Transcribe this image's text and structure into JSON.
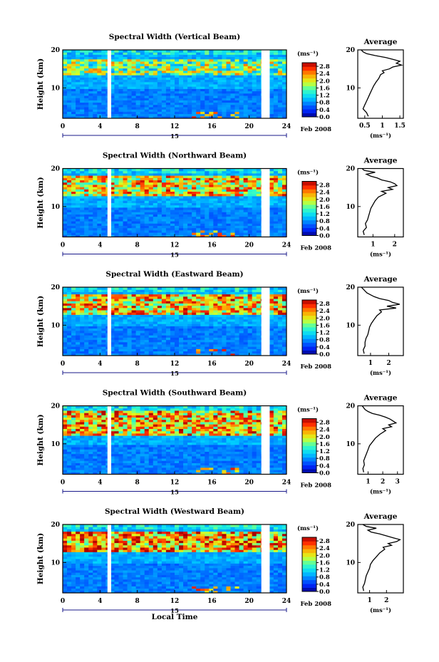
{
  "figure": {
    "xlabel": "Local Time"
  },
  "chart_data": [
    {
      "type": "heatmap",
      "title": "Spectral Width (Vertical Beam)",
      "beam": "vertical",
      "ylabel": "Height (km)",
      "ylim": [
        2,
        20
      ],
      "yticks": [
        10,
        20
      ],
      "xlim": [
        0,
        24
      ],
      "xticks": [
        0,
        4,
        8,
        12,
        16,
        20,
        24
      ],
      "day_label": "15",
      "date_label": "Feb 2008",
      "colorbar": {
        "unit": "(ms⁻¹)",
        "ticks": [
          "0.0",
          "0.4",
          "0.8",
          "1.2",
          "1.6",
          "2.0",
          "2.4",
          "2.8"
        ],
        "range": [
          0,
          3.0
        ]
      },
      "data_gaps_hours": [
        [
          4.8,
          5.2
        ],
        [
          21.3,
          22.2
        ]
      ],
      "layers": [
        {
          "height_km": [
            13.5,
            17.5
          ],
          "level": 0.45
        }
      ],
      "average": {
        "title": "Average",
        "xlabel": "(ms⁻¹)",
        "xlim": [
          0.3,
          1.6
        ],
        "xticks": [
          0.5,
          1.0,
          1.5
        ],
        "xticklabels": [
          "0.5",
          "1",
          "1.5"
        ],
        "ylim": [
          2,
          20
        ],
        "yticks": [
          10,
          20
        ],
        "profile": [
          [
            2.5,
            0.6
          ],
          [
            3.5,
            0.55
          ],
          [
            4.5,
            0.45
          ],
          [
            5.5,
            0.5
          ],
          [
            6.5,
            0.55
          ],
          [
            7.5,
            0.6
          ],
          [
            8.5,
            0.65
          ],
          [
            9.5,
            0.7
          ],
          [
            10.5,
            0.75
          ],
          [
            11.5,
            0.82
          ],
          [
            12.5,
            0.9
          ],
          [
            13.5,
            0.95
          ],
          [
            14,
            1.05
          ],
          [
            14.5,
            1.0
          ],
          [
            15,
            1.2
          ],
          [
            15.5,
            1.3
          ],
          [
            16,
            1.55
          ],
          [
            16.5,
            1.4
          ],
          [
            17,
            1.5
          ],
          [
            17.5,
            1.3
          ],
          [
            18,
            1.1
          ],
          [
            18.5,
            0.8
          ],
          [
            19,
            0.55
          ],
          [
            19.5,
            0.45
          ],
          [
            20,
            0.4
          ]
        ]
      }
    },
    {
      "type": "heatmap",
      "title": "Spectral Width (Northward Beam)",
      "beam": "northward",
      "ylabel": "Height (km)",
      "ylim": [
        2,
        20
      ],
      "yticks": [
        10,
        20
      ],
      "xlim": [
        0,
        24
      ],
      "xticks": [
        0,
        4,
        8,
        12,
        16,
        20,
        24
      ],
      "day_label": "15",
      "date_label": "Feb 2008",
      "colorbar": {
        "unit": "(ms⁻¹)",
        "ticks": [
          "0.0",
          "0.4",
          "0.8",
          "1.2",
          "1.6",
          "2.0",
          "2.4",
          "2.8"
        ],
        "range": [
          0,
          3.0
        ]
      },
      "data_gaps_hours": [
        [
          4.8,
          5.2
        ],
        [
          21.3,
          22.2
        ]
      ],
      "layers": [
        {
          "height_km": [
            13.0,
            18.0
          ],
          "level": 0.7
        }
      ],
      "average": {
        "title": "Average",
        "xlabel": "(ms⁻¹)",
        "xlim": [
          0.3,
          2.4
        ],
        "xticks": [
          1,
          2
        ],
        "xticklabels": [
          "1",
          "2"
        ],
        "ylim": [
          2,
          20
        ],
        "yticks": [
          10,
          20
        ],
        "profile": [
          [
            2.5,
            0.6
          ],
          [
            3.5,
            0.55
          ],
          [
            4.5,
            0.7
          ],
          [
            5.5,
            0.65
          ],
          [
            6.5,
            0.75
          ],
          [
            7.5,
            0.8
          ],
          [
            8.5,
            0.85
          ],
          [
            9.5,
            0.9
          ],
          [
            10.5,
            1.0
          ],
          [
            11.5,
            1.1
          ],
          [
            12.5,
            1.25
          ],
          [
            13.5,
            1.6
          ],
          [
            14,
            1.4
          ],
          [
            14.5,
            1.9
          ],
          [
            15,
            1.7
          ],
          [
            15.5,
            2.1
          ],
          [
            16,
            2.0
          ],
          [
            16.5,
            1.8
          ],
          [
            17,
            1.4
          ],
          [
            17.5,
            1.2
          ],
          [
            18,
            0.9
          ],
          [
            18.5,
            0.7
          ],
          [
            19,
            1.1
          ],
          [
            19.5,
            0.6
          ],
          [
            20,
            0.5
          ]
        ]
      }
    },
    {
      "type": "heatmap",
      "title": "Spectral Width (Eastward Beam)",
      "beam": "eastward",
      "ylabel": "Height (km)",
      "ylim": [
        2,
        20
      ],
      "yticks": [
        10,
        20
      ],
      "xlim": [
        0,
        24
      ],
      "xticks": [
        0,
        4,
        8,
        12,
        16,
        20,
        24
      ],
      "day_label": "15",
      "date_label": "Feb 2008",
      "colorbar": {
        "unit": "(ms⁻¹)",
        "ticks": [
          "0.0",
          "0.4",
          "0.8",
          "1.2",
          "1.6",
          "2.0",
          "2.4",
          "2.8"
        ],
        "range": [
          0,
          3.0
        ]
      },
      "data_gaps_hours": [
        [
          4.8,
          5.2
        ],
        [
          21.3,
          22.2
        ]
      ],
      "layers": [
        {
          "height_km": [
            13.0,
            18.0
          ],
          "level": 0.75
        }
      ],
      "average": {
        "title": "Average",
        "xlabel": "(ms⁻¹)",
        "xlim": [
          0.3,
          2.8
        ],
        "xticks": [
          1,
          2
        ],
        "xticklabels": [
          "1",
          "2"
        ],
        "ylim": [
          2,
          20
        ],
        "yticks": [
          10,
          20
        ],
        "profile": [
          [
            2.5,
            0.65
          ],
          [
            3.5,
            0.6
          ],
          [
            4.5,
            0.7
          ],
          [
            5.5,
            0.7
          ],
          [
            6.5,
            0.75
          ],
          [
            7.5,
            0.85
          ],
          [
            8.5,
            0.9
          ],
          [
            9.5,
            0.95
          ],
          [
            10.5,
            1.05
          ],
          [
            11.5,
            1.2
          ],
          [
            12.5,
            1.35
          ],
          [
            13.5,
            1.6
          ],
          [
            14,
            1.5
          ],
          [
            14.5,
            2.4
          ],
          [
            15,
            1.9
          ],
          [
            15.5,
            2.6
          ],
          [
            16,
            2.2
          ],
          [
            16.5,
            2.0
          ],
          [
            17,
            1.5
          ],
          [
            17.5,
            1.2
          ],
          [
            18,
            1.0
          ],
          [
            18.5,
            0.8
          ],
          [
            19,
            0.7
          ],
          [
            19.5,
            0.6
          ],
          [
            20,
            0.5
          ]
        ]
      }
    },
    {
      "type": "heatmap",
      "title": "Spectral Width (Southward Beam)",
      "beam": "southward",
      "ylabel": "Height (km)",
      "ylim": [
        2,
        20
      ],
      "yticks": [
        10,
        20
      ],
      "xlim": [
        0,
        24
      ],
      "xticks": [
        0,
        4,
        8,
        12,
        16,
        20,
        24
      ],
      "day_label": "15",
      "date_label": "Feb 2008",
      "colorbar": {
        "unit": "(ms⁻¹)",
        "ticks": [
          "0.0",
          "0.4",
          "0.8",
          "1.2",
          "1.6",
          "2.0",
          "2.4",
          "2.8"
        ],
        "range": [
          0,
          3.0
        ]
      },
      "data_gaps_hours": [
        [
          4.8,
          5.2
        ],
        [
          21.3,
          22.2
        ]
      ],
      "layers": [
        {
          "height_km": [
            12.5,
            18.5
          ],
          "level": 0.75
        }
      ],
      "average": {
        "title": "Average",
        "xlabel": "(ms⁻¹)",
        "xlim": [
          0.3,
          3.4
        ],
        "xticks": [
          1,
          2,
          3
        ],
        "xticklabels": [
          "1",
          "2",
          "3"
        ],
        "ylim": [
          2,
          20
        ],
        "yticks": [
          10,
          20
        ],
        "profile": [
          [
            2.5,
            0.7
          ],
          [
            3.5,
            0.65
          ],
          [
            4.5,
            0.75
          ],
          [
            5.5,
            0.7
          ],
          [
            6.5,
            0.8
          ],
          [
            7.5,
            0.9
          ],
          [
            8.5,
            1.0
          ],
          [
            9.5,
            1.1
          ],
          [
            10.5,
            1.3
          ],
          [
            11.5,
            1.5
          ],
          [
            12.5,
            1.8
          ],
          [
            13.5,
            2.2
          ],
          [
            14,
            2.0
          ],
          [
            14.5,
            2.6
          ],
          [
            15,
            2.4
          ],
          [
            15.5,
            2.9
          ],
          [
            16,
            2.7
          ],
          [
            16.5,
            2.5
          ],
          [
            17,
            2.2
          ],
          [
            17.5,
            1.8
          ],
          [
            18,
            1.3
          ],
          [
            18.5,
            1.0
          ],
          [
            19,
            0.8
          ],
          [
            19.5,
            0.7
          ],
          [
            20,
            0.6
          ]
        ]
      }
    },
    {
      "type": "heatmap",
      "title": "Spectral Width (Westward Beam)",
      "beam": "westward",
      "ylabel": "Height (km)",
      "ylim": [
        2,
        20
      ],
      "yticks": [
        10,
        20
      ],
      "xlim": [
        0,
        24
      ],
      "xticks": [
        0,
        4,
        8,
        12,
        16,
        20,
        24
      ],
      "day_label": "15",
      "date_label": "Feb 2008",
      "colorbar": {
        "unit": "(ms⁻¹)",
        "ticks": [
          "0.0",
          "0.4",
          "0.8",
          "1.2",
          "1.6",
          "2.0",
          "2.4",
          "2.8"
        ],
        "range": [
          0,
          3.0
        ]
      },
      "data_gaps_hours": [
        [
          4.8,
          5.2
        ],
        [
          21.3,
          22.2
        ]
      ],
      "layers": [
        {
          "height_km": [
            13.0,
            18.0
          ],
          "level": 0.8
        }
      ],
      "average": {
        "title": "Average",
        "xlabel": "(ms⁻¹)",
        "xlim": [
          0.3,
          3.0
        ],
        "xticks": [
          1,
          2
        ],
        "xticklabels": [
          "1",
          "2"
        ],
        "ylim": [
          2,
          20
        ],
        "yticks": [
          10,
          20
        ],
        "profile": [
          [
            2.5,
            0.65
          ],
          [
            3.5,
            0.6
          ],
          [
            4.5,
            0.7
          ],
          [
            5.5,
            0.75
          ],
          [
            6.5,
            0.8
          ],
          [
            7.5,
            0.9
          ],
          [
            8.5,
            1.0
          ],
          [
            9.5,
            1.05
          ],
          [
            10.5,
            1.2
          ],
          [
            11.5,
            1.4
          ],
          [
            12.5,
            1.6
          ],
          [
            13.5,
            1.9
          ],
          [
            14,
            1.8
          ],
          [
            14.5,
            2.3
          ],
          [
            15,
            2.1
          ],
          [
            15.5,
            2.6
          ],
          [
            16,
            2.8
          ],
          [
            16.5,
            2.4
          ],
          [
            17,
            2.0
          ],
          [
            17.5,
            1.6
          ],
          [
            18,
            1.1
          ],
          [
            18.5,
            0.9
          ],
          [
            19,
            1.4
          ],
          [
            19.5,
            0.8
          ],
          [
            20,
            0.6
          ]
        ]
      }
    }
  ]
}
